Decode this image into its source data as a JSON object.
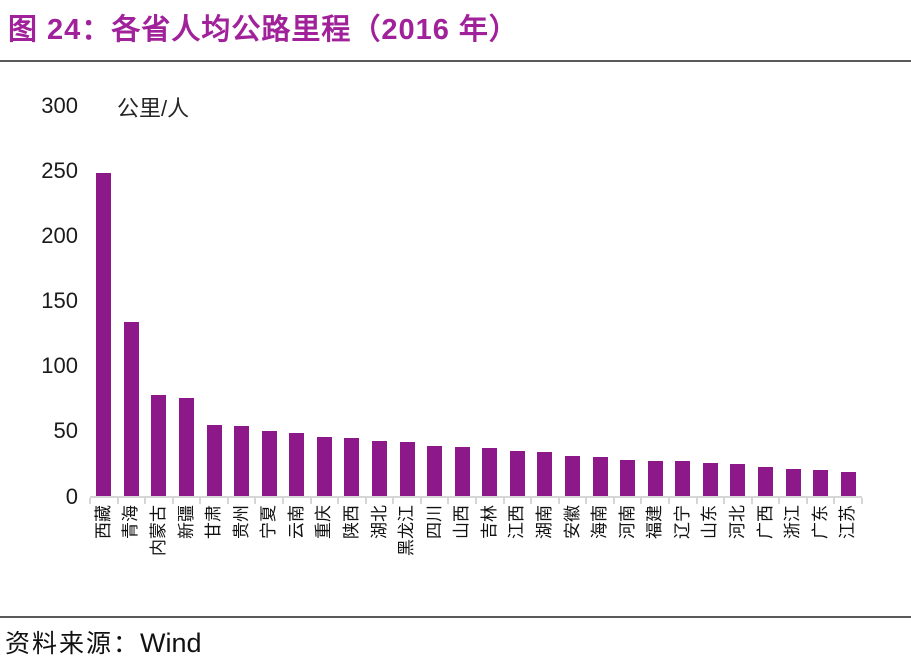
{
  "header": {
    "title": "图 24：各省人均公路里程（2016 年）"
  },
  "colors": {
    "title": "#A0219A",
    "bar": "#8C188A",
    "axis": "#D6D6D6",
    "rule": "#5A5A5A",
    "text": "#111111"
  },
  "chart_data": {
    "type": "bar",
    "title": "各省人均公路里程（2016 年）",
    "unit_label": "公里/人",
    "xlabel": "",
    "ylabel": "公里/人",
    "ylim": [
      0,
      300
    ],
    "y_ticks": [
      0,
      50,
      100,
      150,
      200,
      250,
      300
    ],
    "grid": false,
    "legend_position": "none",
    "categories": [
      "西藏",
      "青海",
      "内蒙古",
      "新疆",
      "甘肃",
      "贵州",
      "宁夏",
      "云南",
      "重庆",
      "陕西",
      "湖北",
      "黑龙江",
      "四川",
      "山西",
      "吉林",
      "江西",
      "湖南",
      "安徽",
      "海南",
      "河南",
      "福建",
      "辽宁",
      "山东",
      "河北",
      "广西",
      "浙江",
      "广东",
      "江苏"
    ],
    "values": [
      249,
      134,
      78,
      76,
      55,
      54,
      50,
      49,
      46,
      45,
      43,
      42,
      39,
      38,
      37,
      35,
      34,
      31,
      30,
      28,
      27,
      27,
      26,
      25,
      23,
      21,
      20,
      19
    ]
  },
  "footer": {
    "source_label": "资料来源：",
    "source_value": "Wind"
  }
}
